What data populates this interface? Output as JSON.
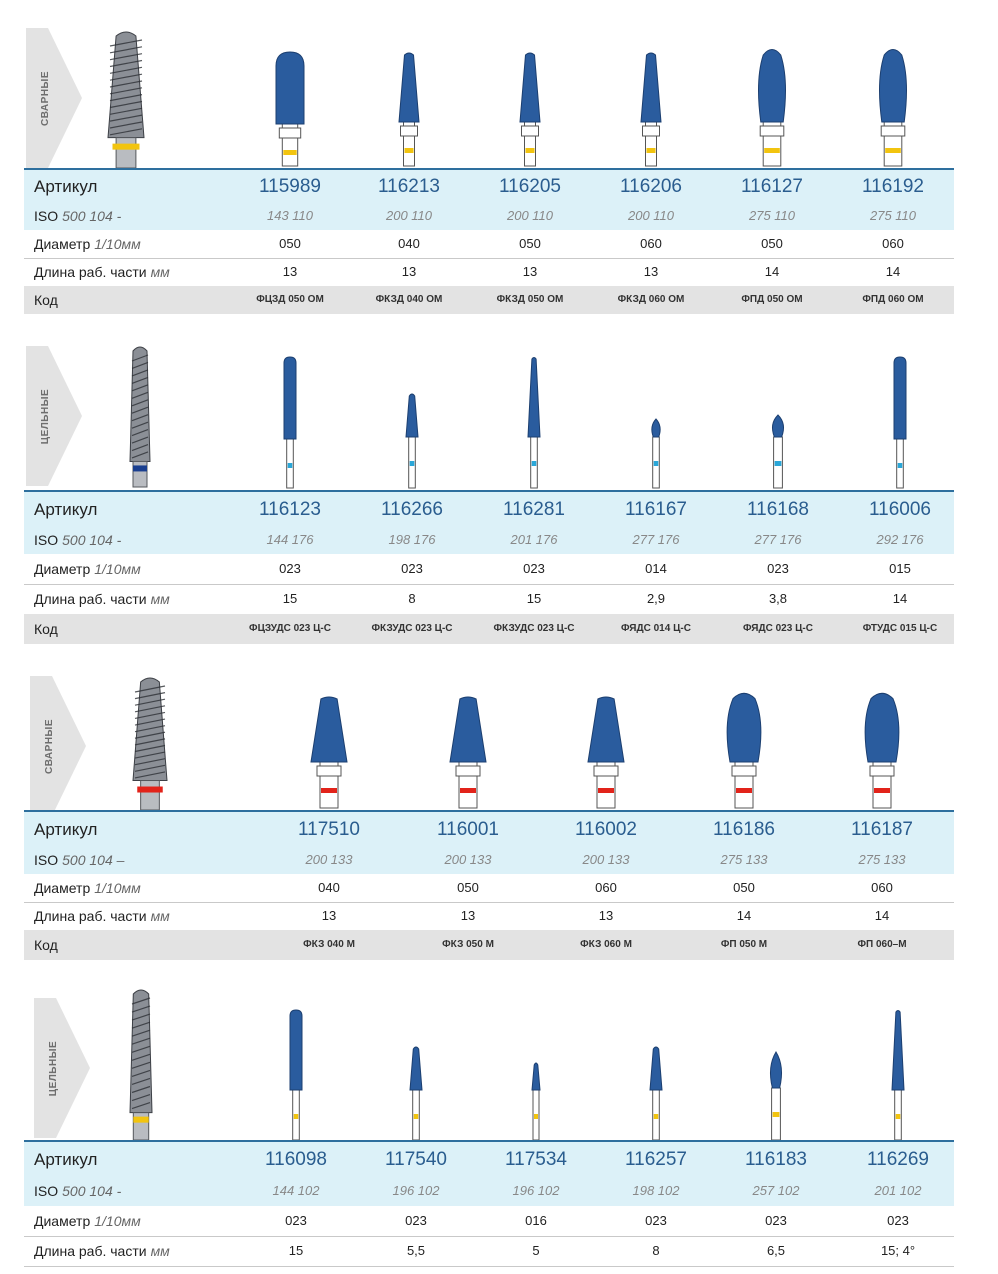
{
  "colors": {
    "tool_blue": "#2a5c9e",
    "header_bg": "#dcf1f8",
    "header_rule": "#2e6f9e",
    "code_bg": "#e3e3e3",
    "ring_yellow": "#f2c40f",
    "ring_cyan": "#2aa7d8",
    "ring_red": "#e2231a",
    "ring_navy": "#1a3f8f"
  },
  "sections": [
    {
      "tab": "СВАРНЫЕ",
      "label_article": "Артикул",
      "label_iso": "ISO",
      "label_iso_std": "500 104 -",
      "label_diameter": "Диаметр",
      "label_diameter_unit": "1/10мм",
      "label_length": "Длина раб. части",
      "label_length_unit": "мм",
      "label_code": "Код",
      "products": [
        {
          "article": "115989",
          "iso": "143 110",
          "diameter": "050",
          "length": "13",
          "code": "ФЦЗД 050 ОМ",
          "shape": "cylinder",
          "ring": "yellow"
        },
        {
          "article": "116213",
          "iso": "200 110",
          "diameter": "040",
          "length": "13",
          "code": "ФКЗД 040 ОМ",
          "shape": "cone",
          "ring": "yellow"
        },
        {
          "article": "116205",
          "iso": "200 110",
          "diameter": "050",
          "length": "13",
          "code": "ФКЗД 050 ОМ",
          "shape": "cone",
          "ring": "yellow"
        },
        {
          "article": "116206",
          "iso": "200 110",
          "diameter": "060",
          "length": "13",
          "code": "ФКЗД 060 ОМ",
          "shape": "cone",
          "ring": "yellow"
        },
        {
          "article": "116127",
          "iso": "275 110",
          "diameter": "050",
          "length": "14",
          "code": "ФПД 050 ОМ",
          "shape": "flame",
          "ring": "yellow"
        },
        {
          "article": "116192",
          "iso": "275 110",
          "diameter": "060",
          "length": "14",
          "code": "ФПД 060 ОМ",
          "shape": "flame",
          "ring": "yellow"
        }
      ]
    },
    {
      "tab": "ЦЕЛЬНЫЕ",
      "label_article": "Артикул",
      "label_iso": "ISO",
      "label_iso_std": "500 104 -",
      "label_diameter": "Диаметр",
      "label_diameter_unit": "1/10мм",
      "label_length": "Длина раб. части",
      "label_length_unit": "мм",
      "label_code": "Код",
      "products": [
        {
          "article": "116123",
          "iso": "144 176",
          "diameter": "023",
          "length": "15",
          "code": "ФЦЗУДС 023 Ц-С",
          "shape": "rod",
          "ring": "cyan"
        },
        {
          "article": "116266",
          "iso": "198 176",
          "diameter": "023",
          "length": "8",
          "code": "ФКЗУДС 023 Ц-С",
          "shape": "smallcone",
          "ring": "cyan"
        },
        {
          "article": "116281",
          "iso": "201 176",
          "diameter": "023",
          "length": "15",
          "code": "ФКЗУДС 023 Ц-С",
          "shape": "needle",
          "ring": "cyan"
        },
        {
          "article": "116167",
          "iso": "277 176",
          "diameter": "014",
          "length": "2,9",
          "code": "ФЯДС 014 Ц-С",
          "shape": "egg",
          "ring": "cyan"
        },
        {
          "article": "116168",
          "iso": "277 176",
          "diameter": "023",
          "length": "3,8",
          "code": "ФЯДС 023 Ц-С",
          "shape": "egg2",
          "ring": "cyan"
        },
        {
          "article": "116006",
          "iso": "292 176",
          "diameter": "015",
          "length": "14",
          "code": "ФТУДС 015 Ц-С",
          "shape": "rod",
          "ring": "cyan"
        }
      ]
    },
    {
      "tab": "СВАРНЫЕ",
      "label_article": "Артикул",
      "label_iso": "ISO",
      "label_iso_std": "500 104 –",
      "label_diameter": "Диаметр",
      "label_diameter_unit": "1/10мм",
      "label_length": "Длина раб. части",
      "label_length_unit": "мм",
      "label_code": "Код",
      "products": [
        {
          "article": "117510",
          "iso": "200 133",
          "diameter": "040",
          "length": "13",
          "code": "ФКЗ 040 М",
          "shape": "widecone",
          "ring": "red"
        },
        {
          "article": "116001",
          "iso": "200 133",
          "diameter": "050",
          "length": "13",
          "code": "ФКЗ 050 М",
          "shape": "widecone",
          "ring": "red"
        },
        {
          "article": "116002",
          "iso": "200 133",
          "diameter": "060",
          "length": "13",
          "code": "ФКЗ 060 М",
          "shape": "widecone",
          "ring": "red"
        },
        {
          "article": "116186",
          "iso": "275 133",
          "diameter": "050",
          "length": "14",
          "code": "ФП 050 М",
          "shape": "wideflame",
          "ring": "red"
        },
        {
          "article": "116187",
          "iso": "275 133",
          "diameter": "060",
          "length": "14",
          "code": "ФП 060–М",
          "shape": "wideflame",
          "ring": "red"
        }
      ]
    },
    {
      "tab": "ЦЕЛЬНЫЕ",
      "label_article": "Артикул",
      "label_iso": "ISO",
      "label_iso_std": "500 104 -",
      "label_diameter": "Диаметр",
      "label_diameter_unit": "1/10мм",
      "label_length": "Длина раб. части",
      "label_length_unit": "мм",
      "products": [
        {
          "article": "116098",
          "iso": "144 102",
          "diameter": "023",
          "length": "15",
          "shape": "longrod",
          "ring": "yellow"
        },
        {
          "article": "117540",
          "iso": "196 102",
          "diameter": "023",
          "length": "5,5",
          "shape": "smallcone",
          "ring": "yellow"
        },
        {
          "article": "117534",
          "iso": "196 102",
          "diameter": "016",
          "length": "5",
          "shape": "tinycone",
          "ring": "yellow"
        },
        {
          "article": "116257",
          "iso": "198 102",
          "diameter": "023",
          "length": "8",
          "shape": "smallcone",
          "ring": "yellow"
        },
        {
          "article": "116183",
          "iso": "257 102",
          "diameter": "023",
          "length": "6,5",
          "shape": "bud",
          "ring": "yellow"
        },
        {
          "article": "116269",
          "iso": "201 102",
          "diameter": "023",
          "length": "15; 4°",
          "shape": "needle",
          "ring": "yellow"
        }
      ]
    }
  ]
}
